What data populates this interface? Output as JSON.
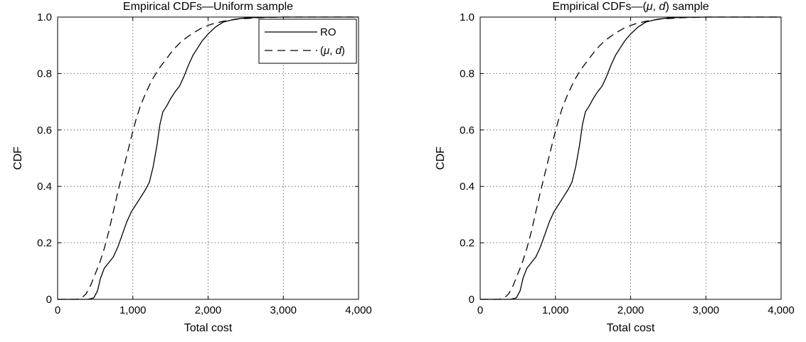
{
  "chart_data": [
    {
      "type": "line",
      "title": "Empirical CDFs—Uniform sample",
      "xlabel": "Total cost",
      "ylabel": "CDF",
      "xlim": [
        0,
        4000
      ],
      "ylim": [
        0,
        1
      ],
      "xticks": [
        0,
        1000,
        2000,
        3000,
        4000
      ],
      "xtick_labels": [
        "0",
        "1,000",
        "2,000",
        "3,000",
        "4,000"
      ],
      "yticks": [
        0,
        0.2,
        0.4,
        0.6,
        0.8,
        1.0
      ],
      "ytick_labels": [
        "0",
        "0.2",
        "0.4",
        "0.6",
        "0.8",
        "1.0"
      ],
      "grid": true,
      "legend": {
        "position": "top-right",
        "show": true
      },
      "series": [
        {
          "name": "RO",
          "style": "solid",
          "color": "#000000",
          "points": [
            [
              0,
              0
            ],
            [
              400,
              0
            ],
            [
              480,
              0.005
            ],
            [
              530,
              0.03
            ],
            [
              570,
              0.075
            ],
            [
              620,
              0.11
            ],
            [
              680,
              0.13
            ],
            [
              740,
              0.15
            ],
            [
              800,
              0.185
            ],
            [
              860,
              0.23
            ],
            [
              920,
              0.275
            ],
            [
              980,
              0.31
            ],
            [
              1040,
              0.335
            ],
            [
              1100,
              0.36
            ],
            [
              1160,
              0.385
            ],
            [
              1220,
              0.415
            ],
            [
              1270,
              0.47
            ],
            [
              1320,
              0.545
            ],
            [
              1360,
              0.62
            ],
            [
              1400,
              0.665
            ],
            [
              1450,
              0.685
            ],
            [
              1500,
              0.71
            ],
            [
              1560,
              0.735
            ],
            [
              1620,
              0.755
            ],
            [
              1680,
              0.79
            ],
            [
              1740,
              0.83
            ],
            [
              1800,
              0.865
            ],
            [
              1860,
              0.89
            ],
            [
              1920,
              0.915
            ],
            [
              2000,
              0.94
            ],
            [
              2100,
              0.965
            ],
            [
              2200,
              0.982
            ],
            [
              2350,
              0.992
            ],
            [
              2500,
              0.997
            ],
            [
              2700,
              0.999
            ],
            [
              3000,
              1.0
            ],
            [
              4000,
              1.0
            ]
          ]
        },
        {
          "name": "(μ, d)",
          "style": "dashed",
          "color": "#000000",
          "points": [
            [
              0,
              0
            ],
            [
              250,
              0
            ],
            [
              320,
              0.005
            ],
            [
              380,
              0.02
            ],
            [
              440,
              0.05
            ],
            [
              500,
              0.09
            ],
            [
              560,
              0.13
            ],
            [
              620,
              0.18
            ],
            [
              680,
              0.24
            ],
            [
              740,
              0.31
            ],
            [
              800,
              0.38
            ],
            [
              860,
              0.445
            ],
            [
              920,
              0.51
            ],
            [
              980,
              0.575
            ],
            [
              1040,
              0.635
            ],
            [
              1100,
              0.685
            ],
            [
              1170,
              0.73
            ],
            [
              1250,
              0.775
            ],
            [
              1340,
              0.815
            ],
            [
              1440,
              0.85
            ],
            [
              1540,
              0.885
            ],
            [
              1650,
              0.915
            ],
            [
              1780,
              0.94
            ],
            [
              1920,
              0.962
            ],
            [
              2050,
              0.975
            ],
            [
              2200,
              0.985
            ],
            [
              2400,
              0.993
            ],
            [
              2700,
              0.998
            ],
            [
              3000,
              1.0
            ],
            [
              4000,
              1.0
            ]
          ]
        }
      ]
    },
    {
      "type": "line",
      "title": "Empirical CDFs—(μ, d) sample",
      "xlabel": "Total cost",
      "ylabel": "CDF",
      "xlim": [
        0,
        4000
      ],
      "ylim": [
        0,
        1
      ],
      "xticks": [
        0,
        1000,
        2000,
        3000,
        4000
      ],
      "xtick_labels": [
        "0",
        "1,000",
        "2,000",
        "3,000",
        "4,000"
      ],
      "yticks": [
        0,
        0.2,
        0.4,
        0.6,
        0.8,
        1.0
      ],
      "ytick_labels": [
        "0",
        "0.2",
        "0.4",
        "0.6",
        "0.8",
        "1.0"
      ],
      "grid": true,
      "legend": {
        "show": false
      },
      "series": [
        {
          "name": "RO",
          "style": "solid",
          "color": "#000000",
          "points": [
            [
              0,
              0
            ],
            [
              400,
              0
            ],
            [
              480,
              0.005
            ],
            [
              530,
              0.03
            ],
            [
              570,
              0.075
            ],
            [
              620,
              0.11
            ],
            [
              680,
              0.13
            ],
            [
              740,
              0.15
            ],
            [
              800,
              0.185
            ],
            [
              860,
              0.23
            ],
            [
              920,
              0.275
            ],
            [
              980,
              0.31
            ],
            [
              1040,
              0.335
            ],
            [
              1100,
              0.36
            ],
            [
              1160,
              0.385
            ],
            [
              1220,
              0.415
            ],
            [
              1270,
              0.47
            ],
            [
              1320,
              0.545
            ],
            [
              1360,
              0.62
            ],
            [
              1400,
              0.665
            ],
            [
              1450,
              0.685
            ],
            [
              1500,
              0.71
            ],
            [
              1560,
              0.735
            ],
            [
              1620,
              0.755
            ],
            [
              1680,
              0.79
            ],
            [
              1740,
              0.83
            ],
            [
              1800,
              0.865
            ],
            [
              1860,
              0.89
            ],
            [
              1920,
              0.915
            ],
            [
              2000,
              0.94
            ],
            [
              2100,
              0.965
            ],
            [
              2200,
              0.982
            ],
            [
              2350,
              0.992
            ],
            [
              2500,
              0.997
            ],
            [
              2700,
              0.999
            ],
            [
              3000,
              1.0
            ],
            [
              4000,
              1.0
            ]
          ]
        },
        {
          "name": "(μ, d)",
          "style": "dashed",
          "color": "#000000",
          "points": [
            [
              0,
              0
            ],
            [
              250,
              0
            ],
            [
              320,
              0.005
            ],
            [
              380,
              0.02
            ],
            [
              440,
              0.05
            ],
            [
              500,
              0.09
            ],
            [
              560,
              0.13
            ],
            [
              620,
              0.18
            ],
            [
              680,
              0.24
            ],
            [
              740,
              0.31
            ],
            [
              800,
              0.38
            ],
            [
              860,
              0.445
            ],
            [
              920,
              0.51
            ],
            [
              980,
              0.575
            ],
            [
              1040,
              0.635
            ],
            [
              1100,
              0.685
            ],
            [
              1170,
              0.73
            ],
            [
              1250,
              0.775
            ],
            [
              1340,
              0.815
            ],
            [
              1440,
              0.85
            ],
            [
              1540,
              0.885
            ],
            [
              1650,
              0.915
            ],
            [
              1780,
              0.94
            ],
            [
              1920,
              0.962
            ],
            [
              2050,
              0.975
            ],
            [
              2200,
              0.985
            ],
            [
              2400,
              0.993
            ],
            [
              2700,
              0.998
            ],
            [
              3000,
              1.0
            ],
            [
              4000,
              1.0
            ]
          ]
        }
      ]
    }
  ]
}
